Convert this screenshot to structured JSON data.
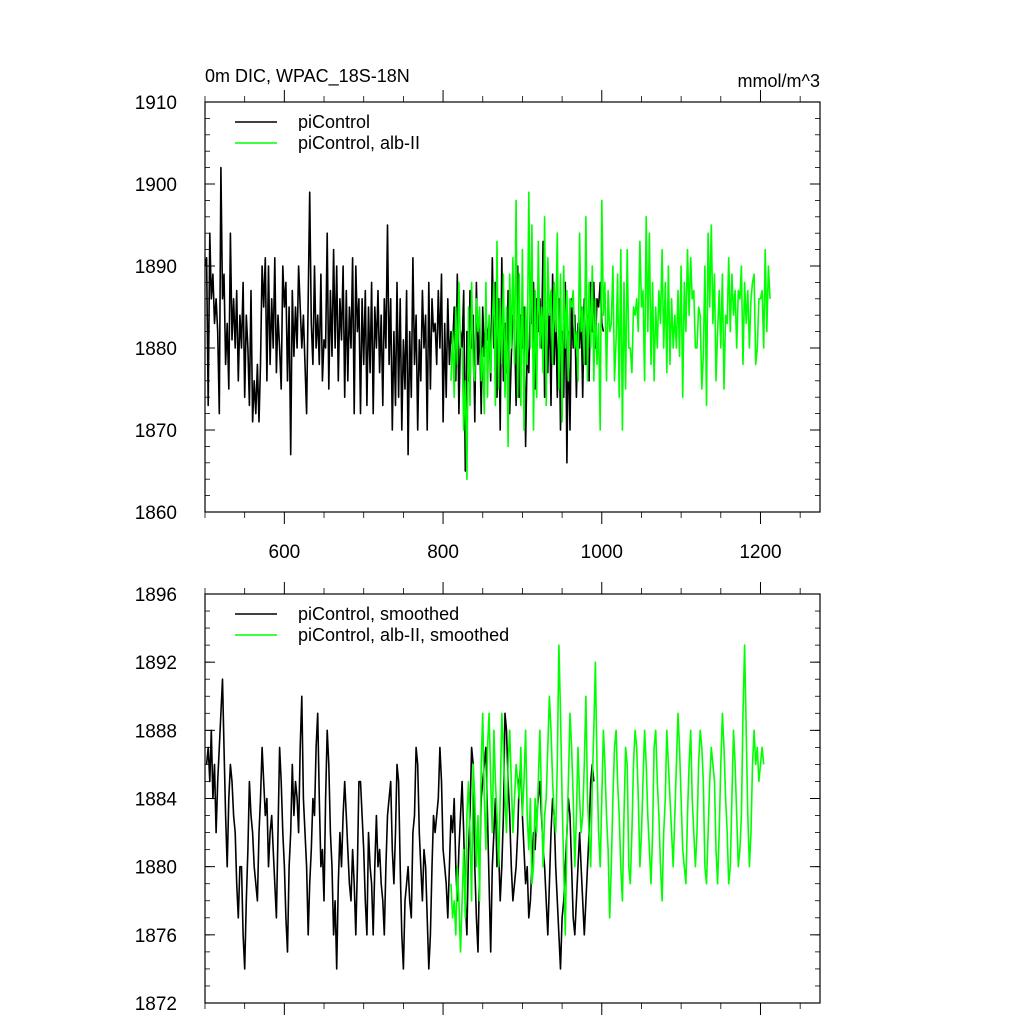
{
  "chart_data": [
    {
      "type": "line",
      "title": "0m DIC, WPAC_18S-18N",
      "units": "mmol/m^3",
      "xlim": [
        500,
        1275
      ],
      "ylim": [
        1860,
        1910
      ],
      "xticks": [
        600,
        800,
        1000,
        1200
      ],
      "xtick_labels": [
        "600",
        "800",
        "1000",
        "1200"
      ],
      "yticks": [
        1860,
        1870,
        1880,
        1890,
        1900,
        1910
      ],
      "ytick_labels": [
        "1860",
        "1870",
        "1880",
        "1890",
        "1900",
        "1910"
      ],
      "grid": false,
      "legend_position": "top-left",
      "series": [
        {
          "name": "piControl",
          "color": "#000000",
          "x_start": 500,
          "x_step": 2,
          "values": [
            1890,
            1891,
            1873,
            1894,
            1886,
            1889,
            1883,
            1886,
            1882,
            1872,
            1902,
            1886,
            1889,
            1878,
            1883,
            1875,
            1894,
            1881,
            1886,
            1880,
            1887,
            1876,
            1884,
            1880,
            1888,
            1874,
            1884,
            1880,
            1873,
            1887,
            1871,
            1876,
            1872,
            1878,
            1871,
            1878,
            1890,
            1885,
            1891,
            1876,
            1890,
            1878,
            1886,
            1880,
            1891,
            1877,
            1884,
            1880,
            1875,
            1890,
            1885,
            1888,
            1876,
            1885,
            1867,
            1887,
            1879,
            1885,
            1880,
            1890,
            1885,
            1880,
            1884,
            1878,
            1872,
            1886,
            1899,
            1883,
            1878,
            1890,
            1880,
            1884,
            1878,
            1889,
            1876,
            1881,
            1880,
            1894,
            1875,
            1887,
            1879,
            1892,
            1880,
            1890,
            1876,
            1886,
            1881,
            1890,
            1874,
            1887,
            1876,
            1885,
            1880,
            1891,
            1872,
            1890,
            1882,
            1886,
            1872,
            1886,
            1878,
            1887,
            1873,
            1885,
            1877,
            1888,
            1872,
            1885,
            1880,
            1887,
            1877,
            1884,
            1873,
            1886,
            1880,
            1895,
            1878,
            1886,
            1870,
            1882,
            1873,
            1888,
            1874,
            1886,
            1870,
            1881,
            1875,
            1887,
            1867,
            1882,
            1874,
            1891,
            1878,
            1884,
            1870,
            1881,
            1876,
            1887,
            1880,
            1884,
            1870,
            1888,
            1875,
            1886,
            1882,
            1883,
            1878,
            1887,
            1880,
            1889,
            1871,
            1883,
            1874,
            1886,
            1878,
            1882,
            1880,
            1885,
            1876,
            1889,
            1872,
            1882,
            1880,
            1887,
            1865,
            1882,
            1876,
            1887,
            1880,
            1884,
            1871,
            1888,
            1878,
            1883,
            1872,
            1885,
            1879,
            1884,
            1881,
            1883,
            1876,
            1891,
            1880,
            1888,
            1874,
            1886,
            1870,
            1891,
            1876,
            1883,
            1877,
            1887,
            1872,
            1879,
            1884,
            1883,
            1873,
            1890,
            1874,
            1884,
            1880,
            1885,
            1868,
            1880,
            1877,
            1886,
            1883,
            1888,
            1875,
            1886,
            1882,
            1886,
            1880,
            1893,
            1874,
            1882,
            1877,
            1886,
            1873,
            1889,
            1878,
            1885,
            1874,
            1886,
            1870,
            1882,
            1874,
            1888,
            1866,
            1882,
            1870,
            1886,
            1880,
            1884,
            1874,
            1883,
            1880,
            1885,
            1874,
            1886,
            1878,
            1884,
            1876,
            1888,
            1882,
            1888,
            1880,
            1886,
            1885,
            1888,
            1883,
            1882
          ]
        },
        {
          "name": "piControl, alb-II",
          "color": "#00ff00",
          "x_start": 810,
          "x_step": 2,
          "values": [
            1876,
            1882,
            1874,
            1885,
            1878,
            1888,
            1880,
            1880,
            1870,
            1876,
            1864,
            1885,
            1873,
            1888,
            1878,
            1876,
            1886,
            1882,
            1885,
            1876,
            1880,
            1872,
            1888,
            1874,
            1884,
            1877,
            1883,
            1888,
            1873,
            1893,
            1875,
            1886,
            1878,
            1889,
            1874,
            1885,
            1868,
            1889,
            1880,
            1891,
            1878,
            1898,
            1874,
            1889,
            1873,
            1892,
            1870,
            1885,
            1878,
            1899,
            1880,
            1895,
            1870,
            1887,
            1874,
            1893,
            1880,
            1885,
            1877,
            1896,
            1873,
            1891,
            1884,
            1887,
            1878,
            1888,
            1882,
            1894,
            1875,
            1889,
            1871,
            1890,
            1880,
            1887,
            1876,
            1886,
            1885,
            1887,
            1880,
            1882,
            1876,
            1894,
            1882,
            1885,
            1878,
            1896,
            1876,
            1888,
            1880,
            1890,
            1876,
            1886,
            1878,
            1883,
            1870,
            1898,
            1884,
            1888,
            1876,
            1887,
            1882,
            1883,
            1890,
            1876,
            1881,
            1889,
            1874,
            1892,
            1870,
            1888,
            1875,
            1892,
            1880,
            1880,
            1877,
            1885,
            1884,
            1886,
            1882,
            1893,
            1885,
            1887,
            1876,
            1896,
            1882,
            1894,
            1878,
            1888,
            1876,
            1885,
            1880,
            1887,
            1883,
            1892,
            1880,
            1888,
            1877,
            1890,
            1878,
            1886,
            1880,
            1884,
            1880,
            1887,
            1879,
            1890,
            1874,
            1888,
            1882,
            1892,
            1884,
            1891,
            1886,
            1887,
            1880,
            1880,
            1885,
            1884,
            1875,
            1879,
            1890,
            1873,
            1894,
            1885,
            1895,
            1883,
            1889,
            1876,
            1882,
            1887,
            1880,
            1889,
            1875,
            1884,
            1883,
            1891,
            1882,
            1889,
            1884,
            1887,
            1880,
            1887,
            1886,
            1890,
            1878,
            1888,
            1883,
            1887,
            1880,
            1886,
            1888,
            1889,
            1878,
            1880,
            1886,
            1886,
            1887,
            1880,
            1892,
            1882,
            1890,
            1886
          ]
        }
      ]
    },
    {
      "type": "line",
      "title": "",
      "xlim": [
        500,
        1275
      ],
      "ylim": [
        1872,
        1896
      ],
      "xticks": [
        600,
        800,
        1000,
        1200
      ],
      "yticks": [
        1872,
        1876,
        1880,
        1884,
        1888,
        1892,
        1896
      ],
      "ytick_labels": [
        "1872",
        "1876",
        "1880",
        "1884",
        "1888",
        "1892",
        "1896"
      ],
      "grid": false,
      "legend_position": "top-left",
      "series": [
        {
          "name": "piControl, smoothed",
          "color": "#000000",
          "x_start": 502,
          "x_step": 2,
          "values": [
            1886,
            1887,
            1885,
            1888,
            1884,
            1886,
            1882,
            1885,
            1887,
            1889,
            1891,
            1887,
            1883,
            1880,
            1884,
            1886,
            1885,
            1883,
            1882,
            1879,
            1877,
            1880,
            1880,
            1876,
            1874,
            1878,
            1881,
            1885,
            1883,
            1882,
            1880,
            1879,
            1878,
            1882,
            1884,
            1887,
            1885,
            1883,
            1884,
            1880,
            1882,
            1883,
            1881,
            1879,
            1877,
            1882,
            1887,
            1885,
            1882,
            1880,
            1877,
            1875,
            1880,
            1882,
            1886,
            1883,
            1885,
            1884,
            1882,
            1887,
            1890,
            1884,
            1882,
            1880,
            1876,
            1879,
            1881,
            1884,
            1883,
            1887,
            1889,
            1884,
            1880,
            1881,
            1878,
            1884,
            1888,
            1886,
            1882,
            1880,
            1876,
            1878,
            1874,
            1879,
            1882,
            1880,
            1883,
            1885,
            1883,
            1881,
            1879,
            1878,
            1881,
            1879,
            1876,
            1880,
            1885,
            1885,
            1883,
            1881,
            1878,
            1876,
            1882,
            1880,
            1879,
            1876,
            1880,
            1883,
            1880,
            1881,
            1879,
            1878,
            1876,
            1880,
            1883,
            1884,
            1885,
            1881,
            1879,
            1882,
            1886,
            1885,
            1880,
            1876,
            1874,
            1878,
            1879,
            1880,
            1878,
            1877,
            1882,
            1883,
            1887,
            1886,
            1882,
            1880,
            1878,
            1881,
            1880,
            1877,
            1874,
            1876,
            1880,
            1883,
            1882,
            1883,
            1884,
            1887,
            1885,
            1881,
            1880,
            1879,
            1877,
            1880,
            1883,
            1882,
            1884,
            1880,
            1878,
            1881,
            1883,
            1885,
            1882,
            1878,
            1876,
            1881,
            1883,
            1887,
            1886,
            1880,
            1877,
            1875,
            1880,
            1884,
            1885,
            1886,
            1887,
            1883,
            1879,
            1875,
            1880,
            1882,
            1884,
            1880,
            1881,
            1878,
            1880,
            1883,
            1889,
            1888,
            1885,
            1883,
            1880,
            1878,
            1879,
            1880,
            1882,
            1885,
            1886,
            1883,
            1881,
            1879,
            1880,
            1877,
            1878,
            1880,
            1882,
            1881,
            1883,
            1884,
            1885,
            1883,
            1881,
            1880,
            1878,
            1876,
            1879,
            1882,
            1884,
            1883,
            1880,
            1878,
            1876,
            1874,
            1877,
            1878,
            1880,
            1882,
            1884,
            1883,
            1880,
            1877,
            1876,
            1878,
            1880,
            1882,
            1880,
            1878,
            1876,
            1878,
            1880,
            1882,
            1885,
            1886,
            1885
          ]
        },
        {
          "name": "piControl, alb-II, smoothed",
          "color": "#00ff00",
          "x_start": 810,
          "x_step": 2,
          "values": [
            1879,
            1877,
            1878,
            1876,
            1880,
            1878,
            1875,
            1878,
            1881,
            1877,
            1883,
            1885,
            1882,
            1878,
            1886,
            1884,
            1880,
            1883,
            1878,
            1886,
            1889,
            1884,
            1881,
            1887,
            1889,
            1885,
            1882,
            1888,
            1885,
            1883,
            1880,
            1884,
            1889,
            1887,
            1884,
            1882,
            1886,
            1888,
            1885,
            1882,
            1884,
            1886,
            1885,
            1884,
            1887,
            1883,
            1885,
            1888,
            1883,
            1881,
            1884,
            1879,
            1880,
            1884,
            1882,
            1885,
            1888,
            1884,
            1880,
            1883,
            1884,
            1887,
            1890,
            1888,
            1885,
            1883,
            1882,
            1886,
            1893,
            1889,
            1884,
            1880,
            1876,
            1882,
            1885,
            1889,
            1887,
            1884,
            1880,
            1883,
            1887,
            1884,
            1882,
            1883,
            1886,
            1890,
            1884,
            1882,
            1880,
            1885,
            1888,
            1892,
            1886,
            1882,
            1880,
            1884,
            1888,
            1886,
            1883,
            1881,
            1877,
            1880,
            1884,
            1887,
            1888,
            1885,
            1883,
            1880,
            1878,
            1883,
            1887,
            1886,
            1880,
            1879,
            1882,
            1886,
            1888,
            1887,
            1884,
            1880,
            1882,
            1885,
            1888,
            1886,
            1883,
            1881,
            1879,
            1882,
            1887,
            1888,
            1885,
            1883,
            1880,
            1878,
            1882,
            1884,
            1888,
            1886,
            1884,
            1882,
            1880,
            1883,
            1886,
            1889,
            1887,
            1884,
            1881,
            1880,
            1879,
            1883,
            1886,
            1888,
            1884,
            1882,
            1880,
            1882,
            1886,
            1888,
            1887,
            1885,
            1880,
            1879,
            1882,
            1885,
            1887,
            1886,
            1885,
            1881,
            1879,
            1882,
            1886,
            1889,
            1887,
            1884,
            1882,
            1879,
            1880,
            1884,
            1888,
            1886,
            1883,
            1880,
            1881,
            1883,
            1889,
            1893,
            1888,
            1883,
            1880,
            1882,
            1886,
            1888,
            1886,
            1887,
            1885,
            1886,
            1887,
            1886
          ]
        }
      ]
    }
  ]
}
